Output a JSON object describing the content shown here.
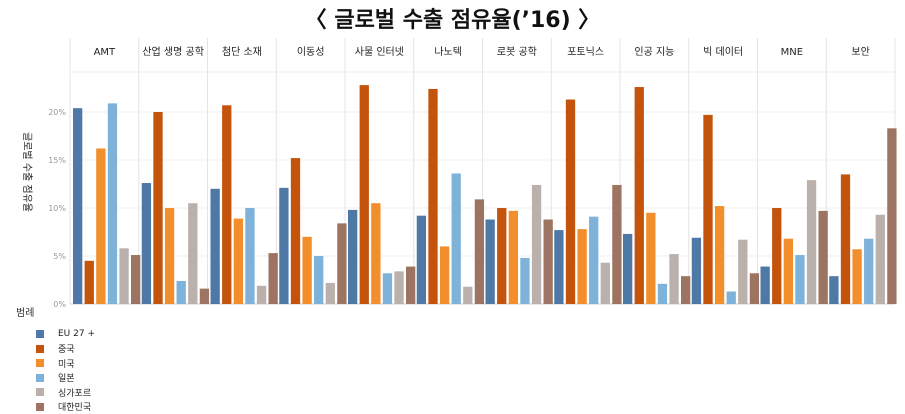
{
  "title": "〈 글로벌 수출 점유율(’16) 〉",
  "legend_title": "범례",
  "colors": {
    "EU 27 +": "#4e79a7",
    "중국": "#c4540c",
    "미국": "#f28e2b",
    "일본": "#7eb2d9",
    "싱가포르": "#bab0ac",
    "대한민국": "#9c7461"
  },
  "chart_data": {
    "type": "bar",
    "title": "〈 글로벌 수출 점유율(’16) 〉",
    "ylabel": "글로벌 수출 점유율",
    "xlabel": "",
    "ylim": [
      0,
      22
    ],
    "yticks": [
      "0%",
      "5%",
      "10%",
      "15%",
      "20%"
    ],
    "categories": [
      "AMT",
      "산업 생명 공학",
      "첨단 소재",
      "이동성",
      "사물 인터넷",
      "나노텍",
      "로봇 공학",
      "포토닉스",
      "인공 지능",
      "빅 데이터",
      "MNE",
      "보안"
    ],
    "series": [
      {
        "name": "EU 27 +",
        "values": [
          20.4,
          12.6,
          12.0,
          12.1,
          9.8,
          9.2,
          8.8,
          7.7,
          7.3,
          6.9,
          3.9,
          2.9
        ]
      },
      {
        "name": "중국",
        "values": [
          4.5,
          20.0,
          20.7,
          15.2,
          22.8,
          22.4,
          10.0,
          21.3,
          22.6,
          19.7,
          10.0,
          13.5
        ]
      },
      {
        "name": "미국",
        "values": [
          16.2,
          10.0,
          8.9,
          7.0,
          10.5,
          6.0,
          9.7,
          7.8,
          9.5,
          10.2,
          6.8,
          5.7
        ]
      },
      {
        "name": "일본",
        "values": [
          20.9,
          2.4,
          10.0,
          5.0,
          3.2,
          13.6,
          4.8,
          9.1,
          2.1,
          1.3,
          5.1,
          6.8
        ]
      },
      {
        "name": "싱가포르",
        "values": [
          5.8,
          10.5,
          1.9,
          2.2,
          3.4,
          1.8,
          12.4,
          4.3,
          5.2,
          6.7,
          12.9,
          9.3
        ]
      },
      {
        "name": "대한민국",
        "values": [
          5.1,
          1.6,
          5.3,
          8.4,
          3.9,
          10.9,
          8.8,
          12.4,
          2.9,
          3.2,
          9.7,
          18.3
        ]
      }
    ],
    "grid": true,
    "legend_position": "bottom-left"
  }
}
